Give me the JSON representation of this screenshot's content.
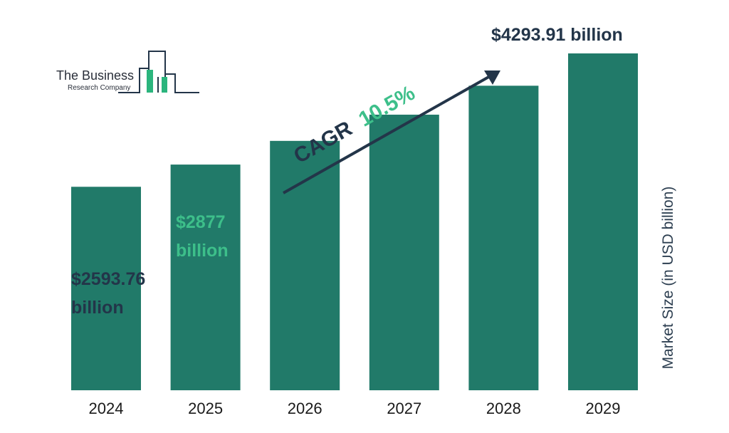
{
  "colors": {
    "bar": "#217a69",
    "dark_text": "#233549",
    "accent_green": "#3dbf8a",
    "logo_line": "#233549",
    "logo_fill": "#2bb57d"
  },
  "logo": {
    "line1": "The Business",
    "line2": "Research Company"
  },
  "chart_data": {
    "type": "bar",
    "categories": [
      "2024",
      "2025",
      "2026",
      "2027",
      "2028",
      "2029"
    ],
    "values": [
      2593.76,
      2877,
      3179,
      3513,
      3882,
      4293.91
    ],
    "ylabel": "Market Size (in USD billion)",
    "data_labels": {
      "2024": [
        "$2593.76",
        "billion"
      ],
      "2025": [
        "$2877",
        "billion"
      ],
      "2029": [
        "$4293.91 billion"
      ]
    },
    "annotation": {
      "text": "CAGR",
      "value": "10.5%"
    },
    "grid": false,
    "legend": "none"
  }
}
